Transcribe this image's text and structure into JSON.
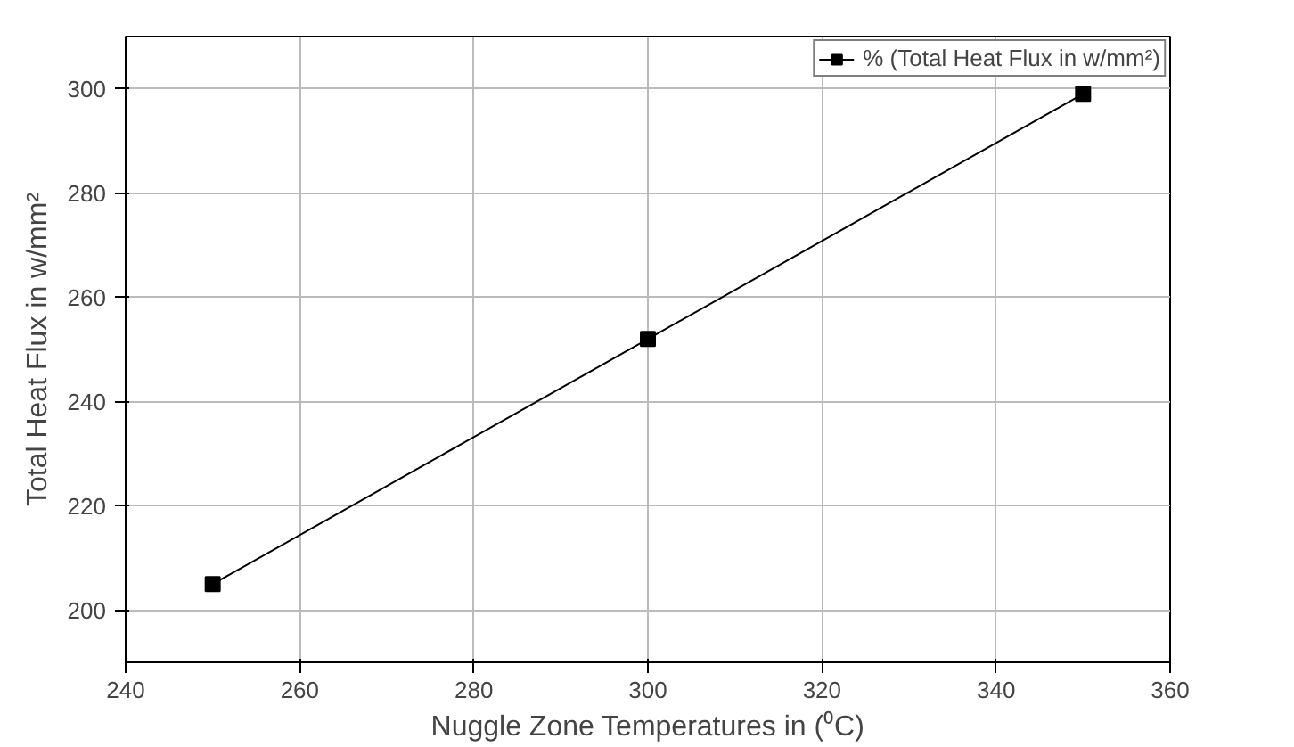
{
  "chart_data": {
    "type": "line",
    "xlabel": "Nuggle Zone Temperatures in (⁰C)",
    "ylabel": "Total Heat Flux in w/mm²",
    "x": [
      250,
      300,
      350
    ],
    "series": [
      {
        "name": "% (Total Heat Flux in w/mm²)",
        "color": "#000000",
        "values": [
          205,
          252,
          299
        ]
      }
    ],
    "xlim": [
      240,
      360
    ],
    "xticks": [
      240,
      260,
      280,
      300,
      320,
      340,
      360
    ],
    "ylim": [
      190,
      310
    ],
    "yticks": [
      200,
      220,
      240,
      260,
      280,
      300
    ],
    "grid": true,
    "legend": "top right",
    "marker": "square",
    "line_style": "solid"
  }
}
